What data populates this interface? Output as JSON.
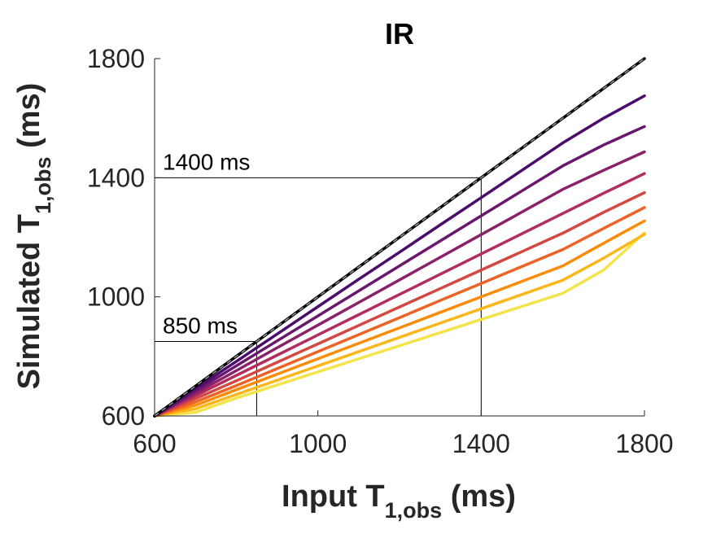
{
  "chart_data": {
    "type": "line",
    "title": "IR",
    "xlabel": {
      "main": "Input T",
      "sub": "1,obs",
      "suffix": " (ms)"
    },
    "ylabel": {
      "main": "Simulated T",
      "sub": "1,obs",
      "suffix": " (ms)"
    },
    "xlim": [
      600,
      1800
    ],
    "ylim": [
      600,
      1800
    ],
    "xticks": [
      600,
      1000,
      1400,
      1800
    ],
    "yticks": [
      600,
      1000,
      1400,
      1800
    ],
    "grid": false,
    "x": [
      600,
      700,
      800,
      900,
      1000,
      1100,
      1200,
      1300,
      1400,
      1500,
      1600,
      1700,
      1800
    ],
    "series": [
      {
        "color": "#000000",
        "values": [
          600,
          700,
          800,
          900,
          1000,
          1100,
          1200,
          1300,
          1400,
          1500,
          1600,
          1700,
          1800
        ]
      },
      {
        "color": "#4b0c6b",
        "values": [
          600,
          692,
          783,
          875,
          967,
          1059,
          1150,
          1242,
          1333,
          1425,
          1517,
          1600,
          1675
        ]
      },
      {
        "color": "#6a176e",
        "values": [
          600,
          684,
          768,
          852,
          936,
          1020,
          1104,
          1188,
          1272,
          1356,
          1440,
          1510,
          1572
        ]
      },
      {
        "color": "#8a226a",
        "values": [
          600,
          676,
          752,
          829,
          905,
          981,
          1057,
          1133,
          1209,
          1285,
          1361,
          1425,
          1487
        ]
      },
      {
        "color": "#b32e5f",
        "values": [
          600,
          668,
          736,
          804,
          872,
          940,
          1008,
          1076,
          1144,
          1212,
          1280,
          1348,
          1414
        ]
      },
      {
        "color": "#d44842",
        "values": [
          600,
          658,
          718,
          780,
          842,
          904,
          966,
          1028,
          1090,
          1152,
          1214,
          1284,
          1350
        ]
      },
      {
        "color": "#ec6325",
        "values": [
          600,
          647,
          702,
          759,
          816,
          873,
          930,
          988,
          1045,
          1102,
          1159,
          1230,
          1300
        ]
      },
      {
        "color": "#fa8c09",
        "values": [
          600,
          636,
          688,
          740,
          792,
          844,
          896,
          948,
          1000,
          1052,
          1104,
          1180,
          1255
        ]
      },
      {
        "color": "#fbb61a",
        "values": [
          600,
          624,
          672,
          720,
          768,
          816,
          864,
          912,
          960,
          1008,
          1056,
          1130,
          1210
        ]
      },
      {
        "color": "#f5e34a",
        "values": [
          600,
          612,
          660,
          704,
          748,
          792,
          836,
          880,
          924,
          968,
          1012,
          1090,
          1215
        ]
      }
    ],
    "identity_line": {
      "style": "dashed",
      "color": "#999999"
    },
    "annotations": [
      {
        "text": "1400 ms",
        "x": 1400,
        "y": 1400
      },
      {
        "text": "850 ms",
        "x": 850,
        "y": 850
      }
    ]
  }
}
